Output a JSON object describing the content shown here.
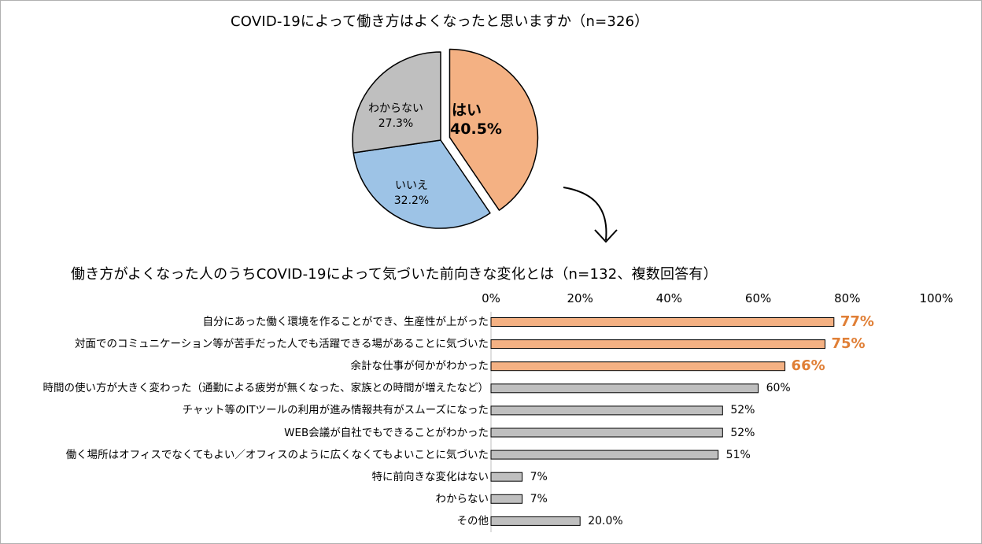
{
  "colors": {
    "yes": "#f4b183",
    "no": "#9dc3e6",
    "unknown": "#bfbfbf",
    "highlight_bar": "#f4b183",
    "normal_bar": "#bfbfbf",
    "highlight_text": "#e07f36"
  },
  "chart_data": [
    {
      "type": "pie",
      "title": "COVID-19によって働き方はよくなったと思いますか（n=326）",
      "slices": [
        {
          "label": "はい",
          "value": 40.5,
          "value_label": "40.5%",
          "color": "#f4b183",
          "exploded": true
        },
        {
          "label": "いいえ",
          "value": 32.2,
          "value_label": "32.2%",
          "color": "#9dc3e6"
        },
        {
          "label": "わからない",
          "value": 27.3,
          "value_label": "27.3%",
          "color": "#bfbfbf"
        }
      ]
    },
    {
      "type": "bar",
      "orientation": "horizontal",
      "title": "働き方がよくなった人のうちCOVID-19によって気づいた前向きな変化とは（n=132、複数回答有）",
      "xlim": [
        0,
        100
      ],
      "ticks": [
        "0%",
        "20%",
        "40%",
        "60%",
        "80%",
        "100%"
      ],
      "tick_values": [
        0,
        20,
        40,
        60,
        80,
        100
      ],
      "categories": [
        "自分にあった働く環境を作ることができ、生産性が上がった",
        "対面でのコミュニケーション等が苦手だった人でも活躍できる場があることに気づいた",
        "余計な仕事が何かがわかった",
        "時間の使い方が大きく変わった（通勤による疲労が無くなった、家族との時間が増えたなど）",
        "チャット等のITツールの利用が進み情報共有がスムーズになった",
        "WEB会議が自社でもできることがわかった",
        "働く場所はオフィスでなくてもよい／オフィスのように広くなくてもよいことに気づいた",
        "特に前向きな変化はない",
        "わからない",
        "その他"
      ],
      "values": [
        77,
        75,
        66,
        60,
        52,
        52,
        51,
        7,
        7,
        20.0
      ],
      "value_labels": [
        "77%",
        "75%",
        "66%",
        "60%",
        "52%",
        "52%",
        "51%",
        "7%",
        "7%",
        "20.0%"
      ],
      "highlighted": [
        true,
        true,
        true,
        false,
        false,
        false,
        false,
        false,
        false,
        false
      ]
    }
  ]
}
